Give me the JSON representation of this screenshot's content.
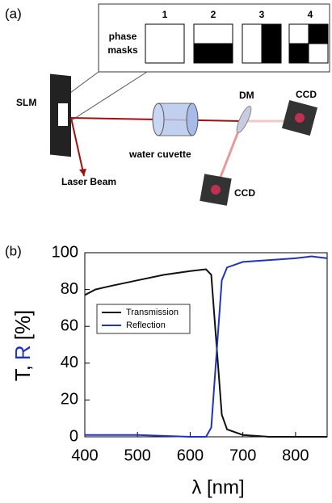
{
  "panel_a": {
    "label": "(a)",
    "mask_title": [
      "phase",
      "masks"
    ],
    "mask_numbers": [
      "1",
      "2",
      "3",
      "4"
    ],
    "slm": "SLM",
    "dm": "DM",
    "ccd_top": "CCD",
    "ccd_bottom": "CCD",
    "cuvette": "water cuvette",
    "laser": "Laser Beam"
  },
  "chart_data": {
    "type": "line",
    "label": "(b)",
    "y_label": [
      "T,",
      "R",
      "[%]"
    ],
    "x_label": "λ [nm]",
    "xlim": [
      400,
      860
    ],
    "xticks": [
      400,
      500,
      600,
      700,
      800
    ],
    "ylim": [
      0,
      100
    ],
    "yticks": [
      0,
      20,
      40,
      60,
      80,
      100
    ],
    "legend": "upper left",
    "series": [
      {
        "name": "Transmission",
        "color": "#111111",
        "x": [
          400,
          420,
          450,
          500,
          550,
          600,
          630,
          640,
          650,
          660,
          670,
          700,
          750,
          800,
          860
        ],
        "values": [
          77,
          80,
          82,
          85,
          88,
          90,
          91,
          88,
          50,
          12,
          4,
          1,
          0,
          0,
          0
        ]
      },
      {
        "name": "Reflection",
        "color": "#2233bb",
        "x": [
          400,
          500,
          600,
          630,
          640,
          650,
          660,
          670,
          700,
          750,
          800,
          830,
          860
        ],
        "values": [
          1,
          1,
          0,
          0,
          5,
          45,
          85,
          92,
          95,
          96,
          97,
          98,
          97
        ]
      }
    ]
  }
}
